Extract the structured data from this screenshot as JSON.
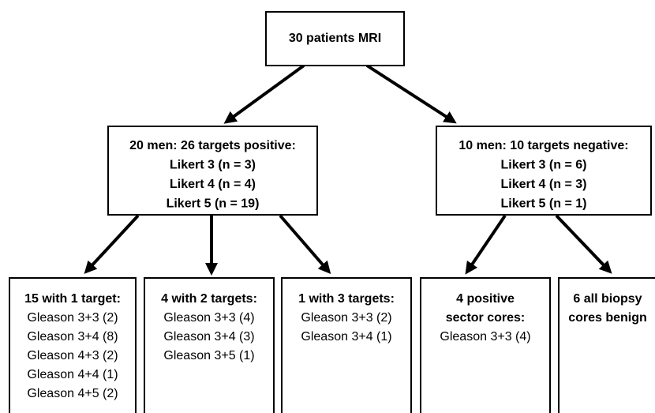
{
  "nodes": [
    {
      "heading": [
        "30 patients MRI"
      ],
      "lines": []
    },
    {
      "heading": [
        "20 men: 26 targets positive:",
        "Likert 3 (n = 3)",
        "Likert 4 (n = 4)",
        "Likert 5 (n = 19)"
      ],
      "lines": []
    },
    {
      "heading": [
        "10 men: 10 targets negative:",
        "Likert 3 (n = 6)",
        "Likert 4 (n = 3)",
        "Likert 5 (n = 1)"
      ],
      "lines": []
    },
    {
      "heading": [
        "15 with 1 target:"
      ],
      "lines": [
        "Gleason 3+3 (2)",
        "Gleason 3+4 (8)",
        "Gleason 4+3 (2)",
        "Gleason 4+4 (1)",
        "Gleason 4+5 (2)"
      ]
    },
    {
      "heading": [
        "4 with 2 targets:"
      ],
      "lines": [
        "Gleason 3+3 (4)",
        "Gleason 3+4 (3)",
        "Gleason 3+5 (1)"
      ]
    },
    {
      "heading": [
        "1 with 3 targets:"
      ],
      "lines": [
        "Gleason 3+3 (2)",
        "Gleason 3+4 (1)"
      ]
    },
    {
      "heading": [
        "4 positive",
        "sector cores:"
      ],
      "lines": [
        "Gleason 3+3 (4)"
      ]
    },
    {
      "heading": [
        "6 all biopsy",
        "cores benign"
      ],
      "lines": []
    }
  ]
}
